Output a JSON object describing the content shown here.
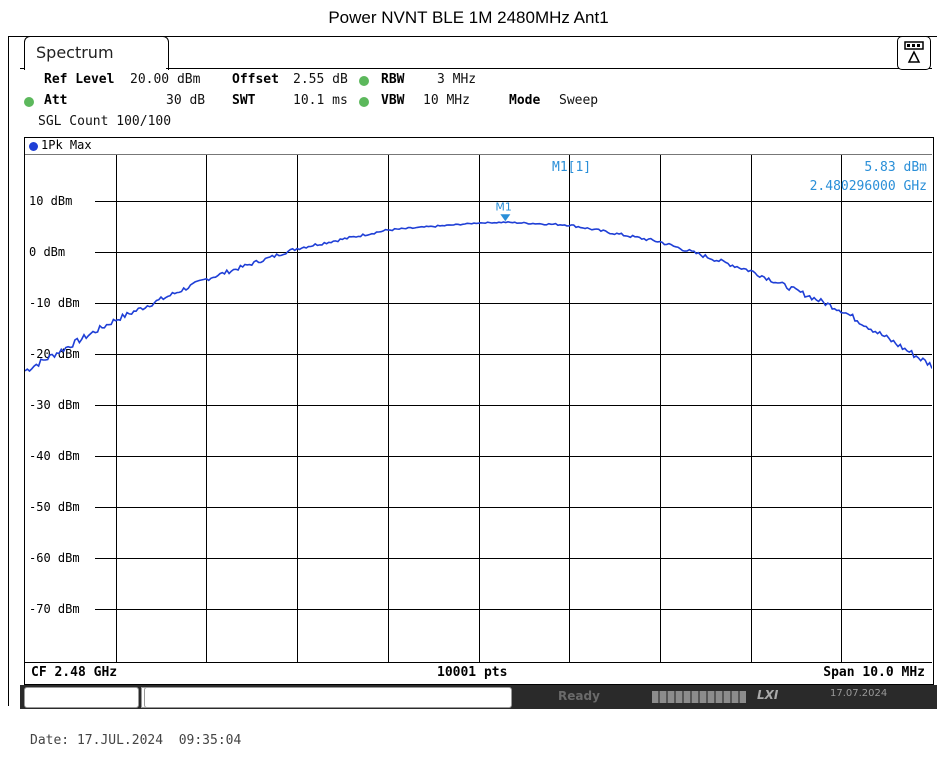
{
  "page_title": "Power NVNT BLE 1M 2480MHz Ant1",
  "tab": {
    "label": "Spectrum"
  },
  "settings": {
    "ref_level_label": "Ref Level",
    "ref_level_value": "20.00 dBm",
    "offset_label": "Offset",
    "offset_value": "2.55 dB",
    "rbw_label": "RBW",
    "rbw_value": "3 MHz",
    "att_label": "Att",
    "att_value": "30 dB",
    "swt_label": "SWT",
    "swt_value": "10.1 ms",
    "vbw_label": "VBW",
    "vbw_value": "10 MHz",
    "mode_label": "Mode",
    "mode_value": "Sweep",
    "sgl_count": "SGL Count 100/100"
  },
  "trace": {
    "label": "1Pk Max",
    "color": "#1f3fd6"
  },
  "marker": {
    "label": "M1[1]",
    "value": "5.83 dBm",
    "frequency": "2.480296000 GHz",
    "tag": "M1",
    "color": "#2a8fd8"
  },
  "footer": {
    "cf": "CF 2.48 GHz",
    "points": "10001 pts",
    "span": "Span 10.0 MHz"
  },
  "status": {
    "ready": "Ready",
    "date": "17.07.2024"
  },
  "date_line": "Date: 17.JUL.2024  09:35:04",
  "chart_data": {
    "type": "line",
    "y_tick_labels": [
      "10 dBm",
      "0 dBm",
      "-10 dBm",
      "-20 dBm",
      "-30 dBm",
      "-40 dBm",
      "-50 dBm",
      "-60 dBm",
      "-70 dBm"
    ],
    "ylim": [
      -80,
      20
    ],
    "xlim_mhz": [
      2475,
      2485
    ],
    "grid": true,
    "series": [
      {
        "x_mhz": [
          2475,
          2476,
          2477,
          2478,
          2479,
          2480,
          2480.3,
          2481,
          2482,
          2483,
          2484,
          2485
        ],
        "y_dbm": [
          -23.3,
          -13.3,
          -5.3,
          0.7,
          4.3,
          5.7,
          5.83,
          5.3,
          2.0,
          -3.7,
          -11.4,
          -22.3
        ]
      }
    ]
  }
}
